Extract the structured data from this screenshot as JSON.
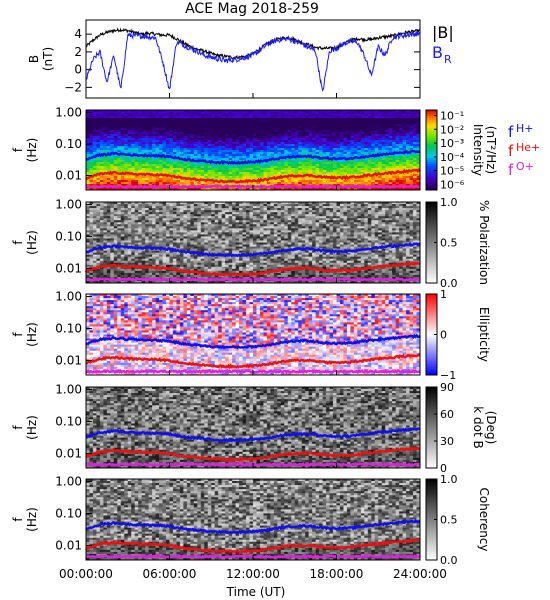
{
  "title": "ACE Mag 2018-259",
  "x_axis": {
    "label": "Time (UT)",
    "tick_labels": [
      "00:00:00",
      "06:00:00",
      "12:00:00",
      "18:00:00",
      "24:00:00"
    ],
    "tick_hours": [
      0,
      6,
      12,
      18,
      24
    ],
    "range_hours": [
      0,
      24
    ]
  },
  "freq_tick_labels": [
    "1.00",
    "0.10",
    "0.01"
  ],
  "freq_ticks": [
    1.0,
    0.1,
    0.01
  ],
  "freq_range_hz": [
    0.0035,
    1.2
  ],
  "freq_scale": "log",
  "panel_ylabel": "f\n(Hz)",
  "legend": {
    "bmag": "|B|",
    "br": "B",
    "br_sub": "R",
    "fh": "f",
    "fh_sub": "H+",
    "fhe": "f",
    "fhe_sub": "He+",
    "fo": "f",
    "fo_sub": "O+"
  },
  "colors": {
    "bmag": "#000000",
    "br": "#1a1aff",
    "fh": "#1010ee",
    "fhe": "#ee1010",
    "fo": "#e020e0"
  },
  "colorbars": [
    {
      "label": "Intensity\n(nT²/Hz)",
      "tick_labels": [
        "10⁻¹",
        "10⁻²",
        "10⁻³",
        "10⁻⁴",
        "10⁻⁵",
        "10⁻⁶"
      ],
      "tick_values": [
        -1,
        -2,
        -3,
        -4,
        -5,
        -6
      ],
      "range": [
        -6.4,
        -0.6
      ],
      "scale": "rainbow"
    },
    {
      "label": "% Polarization",
      "tick_labels": [
        "1.0",
        "0.5",
        "0.0"
      ],
      "tick_values": [
        1,
        0.5,
        0
      ],
      "range": [
        0,
        1
      ],
      "scale": "gray"
    },
    {
      "label": "Ellipticity",
      "tick_labels": [
        "1",
        "0",
        "−1"
      ],
      "tick_values": [
        1,
        0,
        -1
      ],
      "range": [
        -1,
        1
      ],
      "scale": "bwr"
    },
    {
      "label": "k dot B\n(Deg)",
      "tick_labels": [
        "90",
        "60",
        "30",
        "0"
      ],
      "tick_values": [
        90,
        60,
        30,
        0
      ],
      "range": [
        0,
        90
      ],
      "scale": "gray"
    },
    {
      "label": "Coherency",
      "tick_labels": [
        "1.0",
        "0.5",
        "0.0"
      ],
      "tick_values": [
        1,
        0.5,
        0
      ],
      "range": [
        0,
        1
      ],
      "scale": "gray"
    }
  ],
  "chart_data": [
    {
      "type": "line",
      "panel": "B",
      "ylabel": "B\n(nT)",
      "y_tick_labels": [
        "4",
        "2",
        "0",
        "−2"
      ],
      "y_ticks": [
        4,
        2,
        0,
        -2
      ],
      "ylim": [
        -3.2,
        5.6
      ],
      "x_hours": [
        0,
        0.5,
        1,
        1.5,
        2,
        2.5,
        3,
        3.5,
        4,
        4.5,
        5,
        5.5,
        6,
        6.5,
        7,
        7.5,
        8,
        8.5,
        9,
        9.5,
        10,
        10.5,
        11,
        11.5,
        12,
        12.5,
        13,
        13.5,
        14,
        14.5,
        15,
        15.5,
        16,
        16.5,
        17,
        17.5,
        18,
        18.5,
        19,
        19.5,
        20,
        20.5,
        21,
        21.5,
        22,
        22.5,
        23,
        23.5,
        24
      ],
      "series": [
        {
          "name": "|B|",
          "values": [
            2.6,
            3.3,
            3.9,
            4.2,
            4.4,
            4.5,
            4.4,
            4.2,
            4.0,
            4.1,
            4.0,
            3.9,
            3.9,
            3.5,
            3.0,
            2.6,
            2.3,
            2.1,
            1.8,
            1.6,
            1.5,
            1.4,
            1.4,
            1.5,
            1.8,
            2.4,
            2.9,
            3.3,
            3.5,
            3.6,
            3.4,
            3.1,
            2.8,
            2.5,
            2.4,
            2.4,
            2.5,
            2.9,
            3.3,
            3.5,
            3.4,
            3.4,
            3.6,
            3.7,
            3.8,
            4.0,
            4.2,
            4.3,
            4.4
          ]
        },
        {
          "name": "B_R",
          "values": [
            -1.2,
            1.1,
            2.0,
            -1.4,
            1.6,
            -2.3,
            3.9,
            3.8,
            3.8,
            3.7,
            3.6,
            1.0,
            -2.3,
            3.1,
            2.8,
            2.4,
            2.1,
            1.6,
            1.4,
            1.2,
            1.0,
            1.1,
            1.2,
            1.4,
            1.6,
            2.2,
            2.8,
            3.2,
            3.4,
            3.5,
            3.2,
            2.9,
            2.5,
            2.1,
            -2.6,
            2.1,
            2.4,
            2.9,
            3.2,
            3.1,
            1.6,
            -0.7,
            2.6,
            1.6,
            3.6,
            3.8,
            3.9,
            4.0,
            4.1
          ]
        }
      ]
    },
    {
      "type": "heatmap",
      "panels": [
        "Intensity",
        "% Polarization",
        "Ellipticity",
        "k dot B",
        "Coherency"
      ],
      "x_hours": [
        0,
        1,
        2,
        3,
        4,
        5,
        6,
        7,
        8,
        9,
        10,
        11,
        12,
        13,
        14,
        15,
        16,
        17,
        18,
        19,
        20,
        21,
        22,
        23,
        24
      ],
      "series": [
        {
          "name": "f_H+",
          "values": [
            0.032,
            0.045,
            0.05,
            0.046,
            0.044,
            0.043,
            0.04,
            0.033,
            0.03,
            0.027,
            0.026,
            0.026,
            0.027,
            0.03,
            0.036,
            0.04,
            0.041,
            0.036,
            0.034,
            0.035,
            0.04,
            0.045,
            0.05,
            0.055,
            0.058
          ]
        },
        {
          "name": "f_He+",
          "values": [
            0.008,
            0.0112,
            0.0125,
            0.0115,
            0.011,
            0.0107,
            0.01,
            0.0082,
            0.0075,
            0.0068,
            0.0065,
            0.0065,
            0.0068,
            0.0075,
            0.009,
            0.01,
            0.0102,
            0.009,
            0.0085,
            0.0088,
            0.01,
            0.0112,
            0.0125,
            0.0137,
            0.0145
          ]
        },
        {
          "name": "f_O+",
          "values": [
            0.0045,
            0.0045,
            0.0045,
            0.0045,
            0.0045,
            0.0045,
            0.0045,
            0.0045,
            0.0045,
            0.0045,
            0.0045,
            0.0045,
            0.0045,
            0.0045,
            0.0045,
            0.0045,
            0.0045,
            0.0045,
            0.0045,
            0.0045,
            0.0045,
            0.0045,
            0.0045,
            0.0045,
            0.0045
          ]
        }
      ]
    }
  ]
}
